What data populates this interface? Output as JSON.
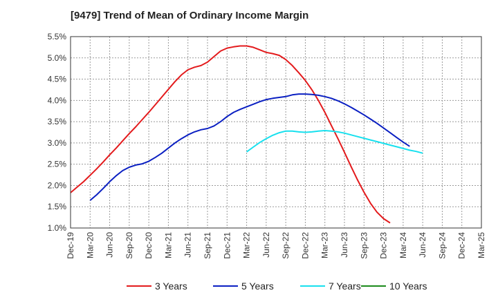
{
  "chart_data": {
    "type": "line",
    "title": "[9479]  Trend of Mean of Ordinary Income Margin",
    "xlabel": "",
    "ylabel": "",
    "x_ticks": [
      "Dec-19",
      "Mar-20",
      "Jun-20",
      "Sep-20",
      "Dec-20",
      "Mar-21",
      "Jun-21",
      "Sep-21",
      "Dec-21",
      "Mar-22",
      "Jun-22",
      "Sep-22",
      "Dec-22",
      "Mar-23",
      "Jun-23",
      "Sep-23",
      "Dec-23",
      "Mar-24",
      "Jun-24",
      "Sep-24",
      "Dec-24",
      "Mar-25"
    ],
    "y_ticks": [
      "1.0%",
      "1.5%",
      "2.0%",
      "2.5%",
      "3.0%",
      "3.5%",
      "4.0%",
      "4.5%",
      "5.0%",
      "5.5%"
    ],
    "ylim": [
      1.0,
      5.5
    ],
    "grid": true,
    "legend_position": "bottom",
    "series": [
      {
        "name": "3 Years",
        "color": "#e31a1c",
        "start_index": 0,
        "values": [
          1.83,
          1.96,
          2.09,
          2.24,
          2.39,
          2.55,
          2.72,
          2.88,
          3.05,
          3.22,
          3.38,
          3.55,
          3.72,
          3.9,
          4.08,
          4.26,
          4.44,
          4.6,
          4.72,
          4.78,
          4.82,
          4.9,
          5.03,
          5.16,
          5.23,
          5.26,
          5.28,
          5.28,
          5.25,
          5.19,
          5.13,
          5.1,
          5.06,
          4.96,
          4.82,
          4.65,
          4.47,
          4.25,
          4.0,
          3.72,
          3.41,
          3.1,
          2.78,
          2.45,
          2.13,
          1.84,
          1.58,
          1.37,
          1.22,
          1.12
        ]
      },
      {
        "name": "5 Years",
        "color": "#0a1fc2",
        "start_index": 3,
        "values": [
          1.65,
          1.78,
          1.93,
          2.09,
          2.23,
          2.35,
          2.43,
          2.48,
          2.51,
          2.57,
          2.66,
          2.76,
          2.88,
          3.0,
          3.1,
          3.19,
          3.26,
          3.31,
          3.34,
          3.4,
          3.5,
          3.62,
          3.72,
          3.79,
          3.85,
          3.91,
          3.97,
          4.02,
          4.05,
          4.07,
          4.09,
          4.13,
          4.15,
          4.15,
          4.14,
          4.12,
          4.09,
          4.05,
          3.99,
          3.92,
          3.84,
          3.75,
          3.66,
          3.56,
          3.46,
          3.35,
          3.24,
          3.13,
          3.02,
          2.92
        ]
      },
      {
        "name": "7 Years",
        "color": "#17e0ee",
        "start_index": 27,
        "values": [
          2.79,
          2.9,
          3.01,
          3.1,
          3.18,
          3.24,
          3.28,
          3.28,
          3.26,
          3.25,
          3.26,
          3.28,
          3.29,
          3.28,
          3.26,
          3.23,
          3.19,
          3.15,
          3.11,
          3.07,
          3.03,
          2.99,
          2.95,
          2.91,
          2.87,
          2.83,
          2.8,
          2.76
        ]
      },
      {
        "name": "10 Years",
        "color": "#1a8a1a",
        "start_index": 0,
        "values": []
      }
    ]
  }
}
